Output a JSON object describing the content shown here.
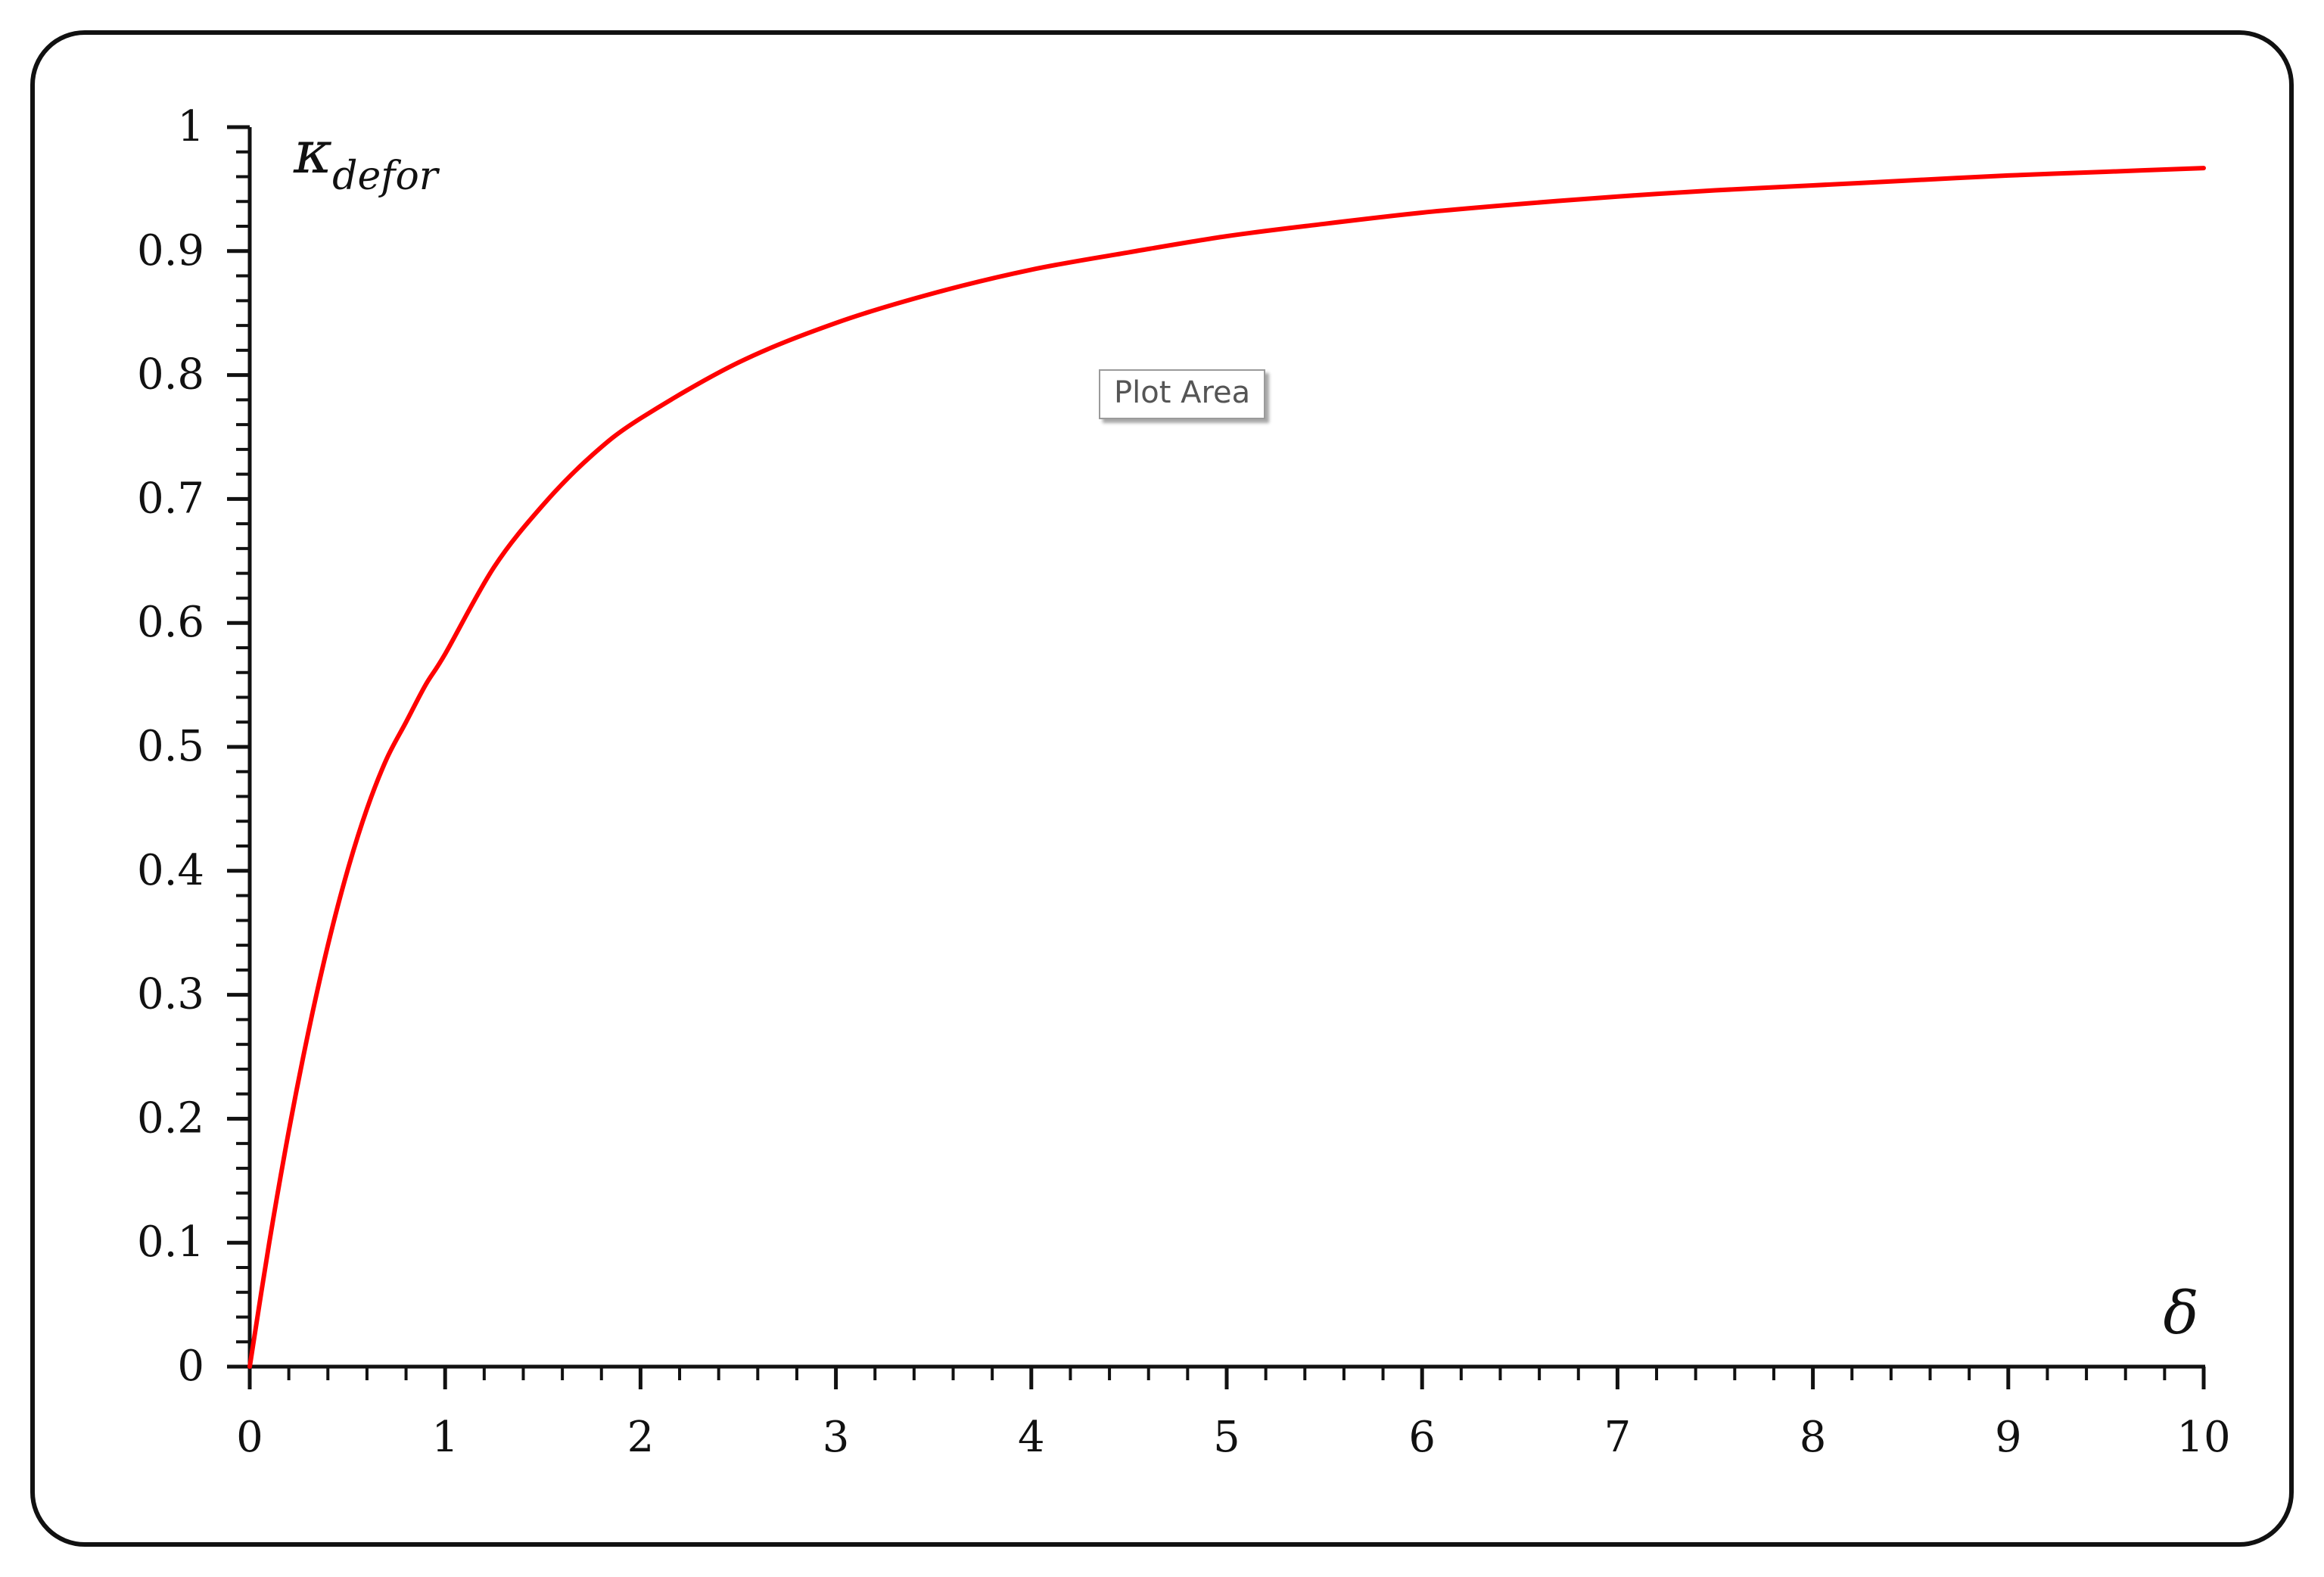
{
  "chart_data": {
    "type": "line",
    "x_ticks": [
      "0",
      "1",
      "2",
      "3",
      "4",
      "5",
      "6",
      "7",
      "8",
      "9",
      "10"
    ],
    "y_ticks": [
      "0",
      "0.1",
      "0.2",
      "0.3",
      "0.4",
      "0.5",
      "0.6",
      "0.7",
      "0.8",
      "0.9",
      "1"
    ],
    "xlim": [
      0,
      10
    ],
    "ylim": [
      0,
      1
    ],
    "xlabel": "δ",
    "ylabel_main": "κ",
    "ylabel_sub": "defor",
    "grid": false,
    "legend": "none",
    "line_color": "#ff0000",
    "series": [
      {
        "x": [
          0,
          0.1,
          0.2,
          0.3,
          0.4,
          0.5,
          0.6,
          0.7,
          0.8,
          0.9,
          1.0,
          1.25,
          1.5,
          1.75,
          2.0,
          2.5,
          3.0,
          3.5,
          4.0,
          4.5,
          5.0,
          5.5,
          6.0,
          6.5,
          7.0,
          7.5,
          8.0,
          8.5,
          9.0,
          9.5,
          10.0
        ],
        "y": [
          0,
          0.1,
          0.19,
          0.27,
          0.34,
          0.4,
          0.45,
          0.49,
          0.52,
          0.55,
          0.575,
          0.645,
          0.695,
          0.735,
          0.765,
          0.81,
          0.842,
          0.866,
          0.885,
          0.899,
          0.912,
          0.922,
          0.931,
          0.938,
          0.944,
          0.949,
          0.953,
          0.957,
          0.961,
          0.964,
          0.967
        ]
      }
    ]
  },
  "tooltip": {
    "text": "Plot Area"
  }
}
